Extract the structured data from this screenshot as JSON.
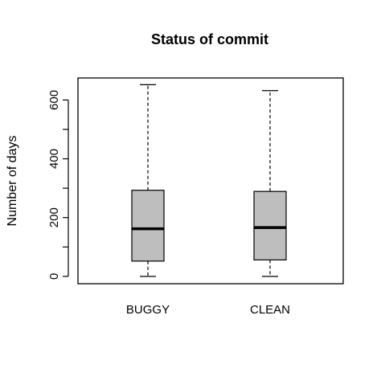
{
  "chart_data": {
    "type": "boxplot",
    "title": "Status of commit",
    "xlabel": "",
    "ylabel": "Number of days",
    "ylim": [
      -25,
      675
    ],
    "yticks": [
      0,
      100,
      200,
      300,
      400,
      500,
      600
    ],
    "ytick_labels": [
      "0",
      "200",
      "400",
      "600"
    ],
    "categories": [
      "BUGGY",
      "CLEAN"
    ],
    "boxes": [
      {
        "category": "BUGGY",
        "min": 0,
        "q1": 52,
        "median": 162,
        "q3": 293,
        "max": 652
      },
      {
        "category": "CLEAN",
        "min": 0,
        "q1": 56,
        "median": 166,
        "q3": 289,
        "max": 632
      }
    ],
    "colors": {
      "box_fill": "#bebebe",
      "stroke": "#000000",
      "median": "#000000"
    },
    "grid": false,
    "legend": "none"
  }
}
